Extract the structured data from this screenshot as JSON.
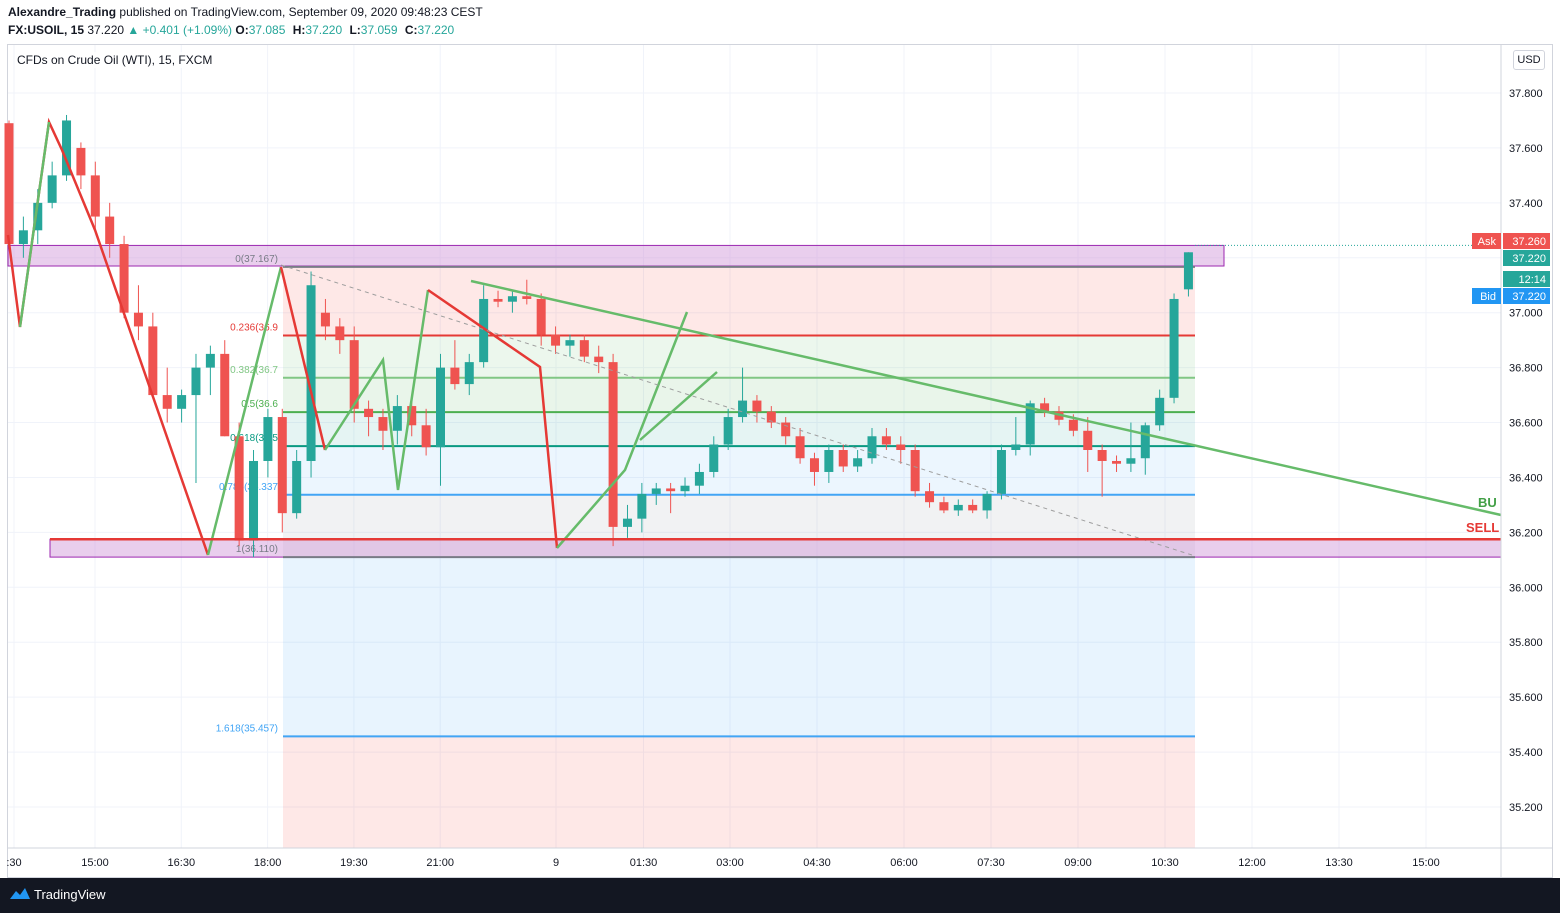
{
  "header": {
    "author": "Alexandre_Trading",
    "published": "published on TradingView.com, September 09, 2020 09:48:23 CEST",
    "symbol": "FX:USOIL, 15",
    "price": "37.220",
    "change": "▲ +0.401 (+1.09%)",
    "ohlc": [
      {
        "label": "O:",
        "value": "37.085"
      },
      {
        "label": "H:",
        "value": "37.220"
      },
      {
        "label": "L:",
        "value": "37.059"
      },
      {
        "label": "C:",
        "value": "37.220"
      }
    ]
  },
  "legend": "CFDs on Crude Oil (WTI), 15, FXCM",
  "currency_button": "USD",
  "footer": {
    "brand": "TradingView"
  },
  "colors": {
    "up": "#26a69a",
    "down": "#ef5350",
    "fib_red": "#e53935",
    "fib_green": "#4caf50",
    "fib_teal": "#089981",
    "fib_blue": "#42a5f5",
    "zone": "#ce93d8",
    "ask": "#ef5350",
    "bid": "#2196f3"
  },
  "chart_data": {
    "type": "candlestick",
    "title": "CFDs on Crude Oil (WTI), 15, FXCM",
    "symbol": "FX:USOIL",
    "interval": "15",
    "ylim": [
      35.1,
      37.9
    ],
    "y_ticks": [
      "37.800",
      "37.600",
      "37.400",
      "37.200",
      "37.000",
      "36.800",
      "36.600",
      "36.400",
      "36.200",
      "36.000",
      "35.800",
      "35.600",
      "35.400",
      "35.200"
    ],
    "x_ticks": [
      ":30",
      "15:00",
      "16:30",
      "18:00",
      "19:30",
      "21:00",
      "9",
      "01:30",
      "03:00",
      "04:30",
      "06:00",
      "07:30",
      "09:00",
      "10:30",
      "12:00",
      "13:30",
      "15:00"
    ],
    "bar_interval_min": 15,
    "first_bar_time_index": 0,
    "candles": [
      [
        37.69,
        37.7,
        37.25,
        37.25
      ],
      [
        37.25,
        37.35,
        37.2,
        37.3
      ],
      [
        37.3,
        37.45,
        37.25,
        37.4
      ],
      [
        37.4,
        37.55,
        37.38,
        37.5
      ],
      [
        37.5,
        37.72,
        37.48,
        37.7
      ],
      [
        37.6,
        37.62,
        37.45,
        37.5
      ],
      [
        37.5,
        37.55,
        37.3,
        37.35
      ],
      [
        37.35,
        37.4,
        37.2,
        37.25
      ],
      [
        37.25,
        37.28,
        36.98,
        37.0
      ],
      [
        37.0,
        37.1,
        36.9,
        36.95
      ],
      [
        36.95,
        37.0,
        36.7,
        36.7
      ],
      [
        36.7,
        36.8,
        36.6,
        36.65
      ],
      [
        36.65,
        36.72,
        36.6,
        36.7
      ],
      [
        36.7,
        36.85,
        36.38,
        36.8
      ],
      [
        36.8,
        36.88,
        36.7,
        36.85
      ],
      [
        36.85,
        36.9,
        36.55,
        36.55
      ],
      [
        36.55,
        36.6,
        36.15,
        36.17
      ],
      [
        36.17,
        36.5,
        36.11,
        36.46
      ],
      [
        36.46,
        36.65,
        36.4,
        36.62
      ],
      [
        36.62,
        36.65,
        36.2,
        36.27
      ],
      [
        36.27,
        36.5,
        36.25,
        36.46
      ],
      [
        36.46,
        37.15,
        36.4,
        37.1
      ],
      [
        37.0,
        37.05,
        36.9,
        36.95
      ],
      [
        36.95,
        36.98,
        36.85,
        36.9
      ],
      [
        36.9,
        36.95,
        36.6,
        36.65
      ],
      [
        36.65,
        36.68,
        36.55,
        36.62
      ],
      [
        36.62,
        36.65,
        36.5,
        36.57
      ],
      [
        36.57,
        36.7,
        36.52,
        36.66
      ],
      [
        36.66,
        36.7,
        36.55,
        36.59
      ],
      [
        36.59,
        36.65,
        36.48,
        36.51
      ],
      [
        36.51,
        36.85,
        36.37,
        36.8
      ],
      [
        36.8,
        36.9,
        36.72,
        36.74
      ],
      [
        36.74,
        36.85,
        36.7,
        36.82
      ],
      [
        36.82,
        37.1,
        36.8,
        37.05
      ],
      [
        37.05,
        37.08,
        37.02,
        37.04
      ],
      [
        37.04,
        37.08,
        37.0,
        37.06
      ],
      [
        37.06,
        37.12,
        37.03,
        37.05
      ],
      [
        37.05,
        37.07,
        36.88,
        36.92
      ],
      [
        36.92,
        36.95,
        36.85,
        36.88
      ],
      [
        36.88,
        36.92,
        36.84,
        36.9
      ],
      [
        36.9,
        36.92,
        36.82,
        36.84
      ],
      [
        36.84,
        36.88,
        36.78,
        36.82
      ],
      [
        36.82,
        36.85,
        36.15,
        36.22
      ],
      [
        36.22,
        36.3,
        36.18,
        36.25
      ],
      [
        36.25,
        36.38,
        36.2,
        36.34
      ],
      [
        36.34,
        36.38,
        36.3,
        36.36
      ],
      [
        36.36,
        36.38,
        36.27,
        36.35
      ],
      [
        36.35,
        36.4,
        36.33,
        36.37
      ],
      [
        36.37,
        36.45,
        36.34,
        36.42
      ],
      [
        36.42,
        36.55,
        36.4,
        36.52
      ],
      [
        36.52,
        36.65,
        36.5,
        36.62
      ],
      [
        36.62,
        36.8,
        36.6,
        36.68
      ],
      [
        36.68,
        36.7,
        36.6,
        36.64
      ],
      [
        36.64,
        36.66,
        36.58,
        36.6
      ],
      [
        36.6,
        36.62,
        36.52,
        36.55
      ],
      [
        36.55,
        36.58,
        36.45,
        36.47
      ],
      [
        36.47,
        36.49,
        36.37,
        36.42
      ],
      [
        36.42,
        36.52,
        36.38,
        36.5
      ],
      [
        36.5,
        36.52,
        36.42,
        36.44
      ],
      [
        36.44,
        36.5,
        36.42,
        36.47
      ],
      [
        36.47,
        36.58,
        36.45,
        36.55
      ],
      [
        36.55,
        36.58,
        36.5,
        36.52
      ],
      [
        36.52,
        36.55,
        36.45,
        36.5
      ],
      [
        36.5,
        36.52,
        36.33,
        36.35
      ],
      [
        36.35,
        36.38,
        36.29,
        36.31
      ],
      [
        36.31,
        36.33,
        36.27,
        36.28
      ],
      [
        36.28,
        36.32,
        36.26,
        36.3
      ],
      [
        36.3,
        36.32,
        36.27,
        36.28
      ],
      [
        36.28,
        36.35,
        36.25,
        36.34
      ],
      [
        36.34,
        36.52,
        36.32,
        36.5
      ],
      [
        36.5,
        36.62,
        36.48,
        36.52
      ],
      [
        36.52,
        36.68,
        36.48,
        36.67
      ],
      [
        36.67,
        36.69,
        36.62,
        36.64
      ],
      [
        36.64,
        36.66,
        36.59,
        36.61
      ],
      [
        36.61,
        36.63,
        36.55,
        36.57
      ],
      [
        36.57,
        36.62,
        36.42,
        36.5
      ],
      [
        36.5,
        36.52,
        36.33,
        36.46
      ],
      [
        36.46,
        36.48,
        36.42,
        36.45
      ],
      [
        36.45,
        36.6,
        36.42,
        36.47
      ],
      [
        36.47,
        36.6,
        36.41,
        36.59
      ],
      [
        36.59,
        36.72,
        36.57,
        36.69
      ],
      [
        36.69,
        37.07,
        36.67,
        37.05
      ],
      [
        37.085,
        37.22,
        37.059,
        37.22
      ]
    ],
    "fibonacci": {
      "start_price": 37.167,
      "end_price": 36.11,
      "levels": [
        {
          "level": "0",
          "label": "0(37.167)",
          "price": 37.167
        },
        {
          "level": "0.236",
          "label": "0.236(36.9",
          "price": 36.917
        },
        {
          "level": "0.382",
          "label": "0.382(36.7",
          "price": 36.763
        },
        {
          "level": "0.5",
          "label": "0.5(36.6",
          "price": 36.638
        },
        {
          "level": "0.618",
          "label": "0.618(36.5",
          "price": 36.514
        },
        {
          "level": "0.786",
          "label": "0.786(36.337",
          "price": 36.337
        },
        {
          "level": "1",
          "label": "1(36.110)",
          "price": 36.11
        },
        {
          "level": "1.618",
          "label": "1.618(35.457)",
          "price": 35.457
        }
      ]
    },
    "zones": [
      {
        "name": "upper-zone",
        "from": 37.17,
        "to": 37.245
      },
      {
        "name": "lower-zone",
        "from": 36.11,
        "to": 36.175
      }
    ],
    "annotations": [
      {
        "text": "BU",
        "color": "#43a047"
      },
      {
        "text": "SELL",
        "color": "#e53935"
      }
    ],
    "price_tags": [
      {
        "label": "Ask",
        "value": "37.260",
        "color": "#ef5350"
      },
      {
        "label": "",
        "value": "37.220",
        "color": "#26a69a"
      },
      {
        "label": "",
        "value": "12:14",
        "color": "#26a69a"
      },
      {
        "label": "Bid",
        "value": "37.220",
        "color": "#2196f3"
      }
    ]
  }
}
